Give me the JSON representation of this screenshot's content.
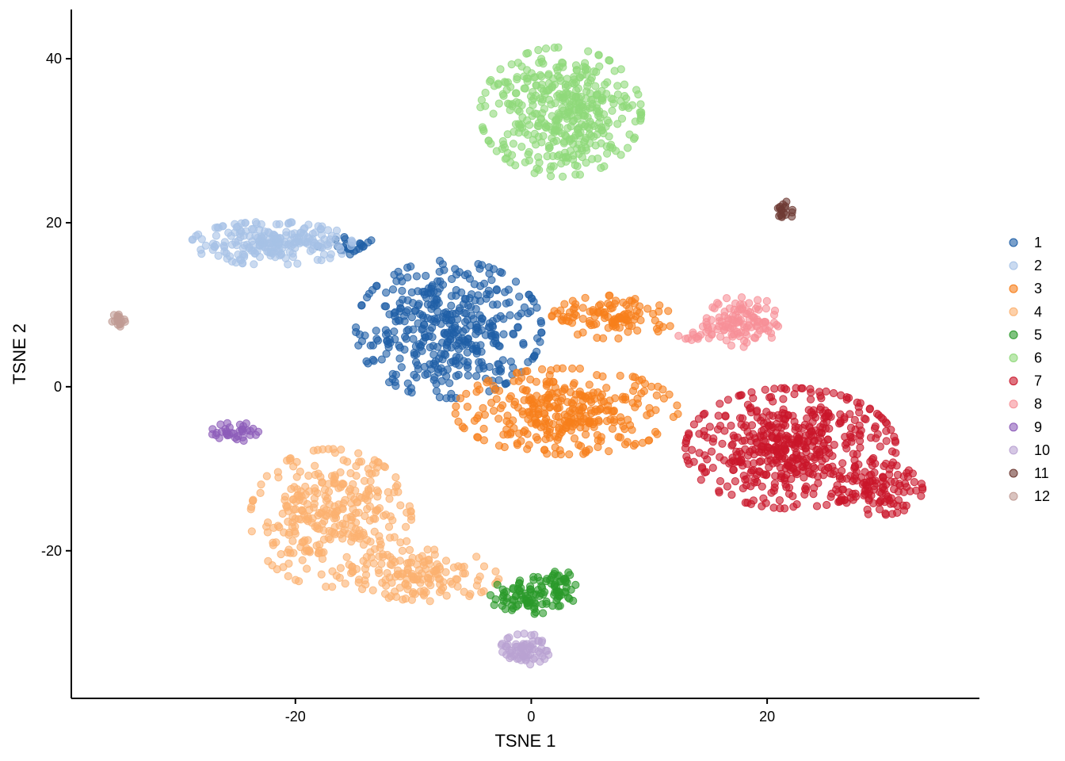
{
  "chart_data": {
    "type": "scatter",
    "title": "",
    "xlabel": "TSNE 1",
    "ylabel": "TSNE 2",
    "xlim": [
      -39,
      38
    ],
    "ylim": [
      -38,
      46
    ],
    "xticks": [
      -20,
      0,
      20
    ],
    "yticks": [
      -20,
      0,
      20,
      40
    ],
    "grid": false,
    "legend_position": "right",
    "point_opacity": 0.6,
    "series": [
      {
        "name": "1",
        "color": "#1F5FA6",
        "clusters": [
          {
            "cx": -7,
            "cy": 7,
            "rx": 7.5,
            "ry": 8,
            "n": 420
          },
          {
            "cx": -15.5,
            "cy": 17,
            "rx": 2.5,
            "ry": 1.2,
            "n": 25
          }
        ]
      },
      {
        "name": "2",
        "color": "#A6C2E6",
        "clusters": [
          {
            "cx": -22,
            "cy": 17.5,
            "rx": 6.5,
            "ry": 2.5,
            "n": 220
          }
        ]
      },
      {
        "name": "3",
        "color": "#F77F1B",
        "clusters": [
          {
            "cx": 3,
            "cy": -3,
            "rx": 9,
            "ry": 5,
            "n": 330
          },
          {
            "cx": 7,
            "cy": 8.5,
            "rx": 5,
            "ry": 2.5,
            "n": 110
          }
        ]
      },
      {
        "name": "4",
        "color": "#FBB170",
        "clusters": [
          {
            "cx": -17,
            "cy": -16,
            "rx": 6.5,
            "ry": 8,
            "n": 330
          },
          {
            "cx": -9,
            "cy": -23,
            "rx": 6,
            "ry": 3,
            "n": 140
          }
        ]
      },
      {
        "name": "5",
        "color": "#2A9A2A",
        "clusters": [
          {
            "cx": 0,
            "cy": -25.5,
            "rx": 3.5,
            "ry": 2.2,
            "n": 90
          },
          {
            "cx": 2.5,
            "cy": -24,
            "rx": 1.2,
            "ry": 1.5,
            "n": 30
          }
        ]
      },
      {
        "name": "6",
        "color": "#8FD97A",
        "clusters": [
          {
            "cx": 2.5,
            "cy": 33.5,
            "rx": 6.5,
            "ry": 7.5,
            "n": 420
          }
        ]
      },
      {
        "name": "7",
        "color": "#C9162A",
        "clusters": [
          {
            "cx": 22,
            "cy": -7.5,
            "rx": 8.5,
            "ry": 7,
            "n": 520
          },
          {
            "cx": 29.5,
            "cy": -12.5,
            "rx": 3.5,
            "ry": 3,
            "n": 90
          }
        ]
      },
      {
        "name": "8",
        "color": "#F79097",
        "clusters": [
          {
            "cx": 18,
            "cy": 8,
            "rx": 3,
            "ry": 3,
            "n": 110
          },
          {
            "cx": 14,
            "cy": 6.5,
            "rx": 1.5,
            "ry": 1,
            "n": 15
          }
        ]
      },
      {
        "name": "9",
        "color": "#8C5BB9",
        "clusters": [
          {
            "cx": -25,
            "cy": -5.5,
            "rx": 2,
            "ry": 1.2,
            "n": 35
          }
        ]
      },
      {
        "name": "10",
        "color": "#B9A2D2",
        "clusters": [
          {
            "cx": -0.5,
            "cy": -32,
            "rx": 2,
            "ry": 1.8,
            "n": 70
          }
        ]
      },
      {
        "name": "11",
        "color": "#6E3A33",
        "clusters": [
          {
            "cx": 21.5,
            "cy": 21.5,
            "rx": 0.7,
            "ry": 1.2,
            "n": 18
          }
        ]
      },
      {
        "name": "12",
        "color": "#C09B94",
        "clusters": [
          {
            "cx": -35,
            "cy": 8,
            "rx": 0.8,
            "ry": 0.8,
            "n": 18
          }
        ]
      }
    ]
  }
}
